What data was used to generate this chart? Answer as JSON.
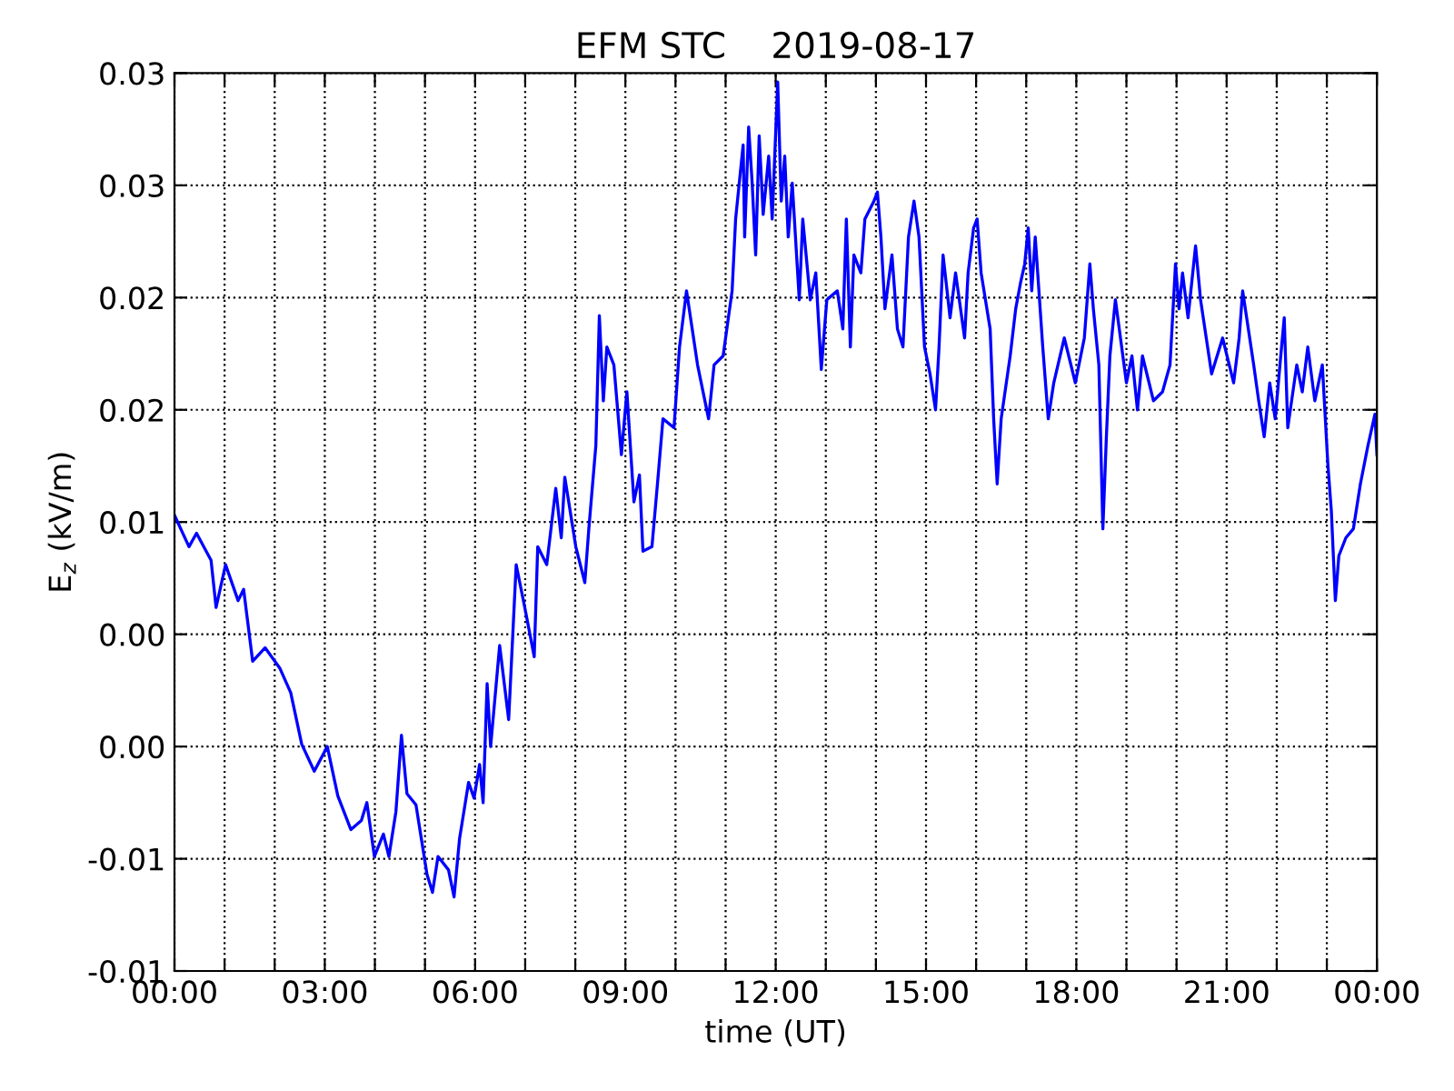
{
  "chart_data": {
    "type": "line",
    "title": "EFM STC    2019-08-17",
    "xlabel": "time (UT)",
    "ylabel": "E$_{z}$ (kV/m)",
    "xlim": [
      0,
      24
    ],
    "ylim": [
      -0.01,
      0.03
    ],
    "xticks": [
      {
        "value": 0,
        "label": "00:00"
      },
      {
        "value": 1,
        "label": null
      },
      {
        "value": 2,
        "label": null
      },
      {
        "value": 3,
        "label": "03:00"
      },
      {
        "value": 4,
        "label": null
      },
      {
        "value": 5,
        "label": null
      },
      {
        "value": 6,
        "label": "06:00"
      },
      {
        "value": 7,
        "label": null
      },
      {
        "value": 8,
        "label": null
      },
      {
        "value": 9,
        "label": "09:00"
      },
      {
        "value": 10,
        "label": null
      },
      {
        "value": 11,
        "label": null
      },
      {
        "value": 12,
        "label": "12:00"
      },
      {
        "value": 13,
        "label": null
      },
      {
        "value": 14,
        "label": null
      },
      {
        "value": 15,
        "label": "15:00"
      },
      {
        "value": 16,
        "label": null
      },
      {
        "value": 17,
        "label": null
      },
      {
        "value": 18,
        "label": "18:00"
      },
      {
        "value": 19,
        "label": null
      },
      {
        "value": 20,
        "label": null
      },
      {
        "value": 21,
        "label": "21:00"
      },
      {
        "value": 22,
        "label": null
      },
      {
        "value": 23,
        "label": null
      },
      {
        "value": 24,
        "label": "00:00"
      }
    ],
    "yticks": [
      {
        "value": -0.01,
        "label": "-0.01"
      },
      {
        "value": -0.005,
        "label": "-0.01"
      },
      {
        "value": 0,
        "label": "0.00"
      },
      {
        "value": 0.005,
        "label": "0.00"
      },
      {
        "value": 0.01,
        "label": "0.01"
      },
      {
        "value": 0.015,
        "label": "0.02"
      },
      {
        "value": 0.02,
        "label": "0.02"
      },
      {
        "value": 0.025,
        "label": "0.03"
      },
      {
        "value": 0.03,
        "label": "0.03"
      }
    ],
    "grid": true,
    "marker": "none",
    "line_style": "solid",
    "series": [
      {
        "color": "#0000ff",
        "x": [
          0.0,
          0.29,
          0.44,
          0.73,
          0.83,
          1.02,
          1.27,
          1.38,
          1.56,
          1.81,
          2.1,
          2.32,
          2.54,
          2.79,
          3.05,
          3.26,
          3.52,
          3.73,
          3.84,
          3.99,
          4.17,
          4.28,
          4.42,
          4.53,
          4.64,
          4.82,
          5.04,
          5.15,
          5.26,
          5.47,
          5.58,
          5.69,
          5.87,
          5.98,
          6.09,
          6.16,
          6.24,
          6.31,
          6.49,
          6.67,
          6.82,
          7.0,
          7.18,
          7.25,
          7.43,
          7.61,
          7.72,
          7.79,
          8.01,
          8.19,
          8.27,
          8.41,
          8.48,
          8.56,
          8.63,
          8.77,
          8.92,
          9.03,
          9.17,
          9.28,
          9.35,
          9.53,
          9.64,
          9.75,
          9.97,
          10.08,
          10.22,
          10.44,
          10.66,
          10.77,
          10.95,
          11.13,
          11.2,
          11.35,
          11.38,
          11.46,
          11.53,
          11.6,
          11.67,
          11.75,
          11.86,
          11.93,
          12.04,
          12.11,
          12.18,
          12.25,
          12.33,
          12.47,
          12.54,
          12.69,
          12.8,
          12.91,
          13.02,
          13.23,
          13.34,
          13.41,
          13.49,
          13.56,
          13.7,
          13.78,
          13.96,
          14.03,
          14.1,
          14.18,
          14.32,
          14.43,
          14.54,
          14.65,
          14.76,
          14.86,
          14.97,
          15.08,
          15.19,
          15.26,
          15.34,
          15.48,
          15.59,
          15.77,
          15.84,
          15.95,
          16.02,
          16.1,
          16.28,
          16.35,
          16.42,
          16.5,
          16.68,
          16.79,
          16.89,
          16.97,
          17.04,
          17.11,
          17.18,
          17.33,
          17.44,
          17.55,
          17.76,
          17.98,
          18.16,
          18.27,
          18.34,
          18.45,
          18.53,
          18.6,
          18.67,
          18.78,
          19.0,
          19.11,
          19.22,
          19.32,
          19.54,
          19.72,
          19.87,
          19.98,
          20.05,
          20.12,
          20.23,
          20.38,
          20.48,
          20.7,
          20.92,
          21.14,
          21.25,
          21.32,
          21.54,
          21.64,
          21.75,
          21.86,
          21.97,
          22.08,
          22.15,
          22.22,
          22.4,
          22.51,
          22.62,
          22.76,
          22.91,
          23.02,
          23.09,
          23.17,
          23.24,
          23.38,
          23.53,
          23.67,
          23.82,
          23.96,
          24.0
        ],
        "values": [
          0.0103,
          0.0089,
          0.0095,
          0.0083,
          0.0062,
          0.0081,
          0.0065,
          0.007,
          0.0038,
          0.0044,
          0.0035,
          0.0024,
          0.0001,
          -0.0011,
          0.0,
          -0.0022,
          -0.0037,
          -0.0033,
          -0.0025,
          -0.0049,
          -0.0039,
          -0.0049,
          -0.0029,
          0.0005,
          -0.0021,
          -0.0026,
          -0.0057,
          -0.0065,
          -0.0049,
          -0.0055,
          -0.0067,
          -0.0041,
          -0.0016,
          -0.0023,
          -0.0008,
          -0.0025,
          0.0028,
          0.0,
          0.0045,
          0.0012,
          0.0081,
          0.0061,
          0.004,
          0.0089,
          0.0081,
          0.0115,
          0.0093,
          0.012,
          0.0089,
          0.0073,
          0.0097,
          0.0134,
          0.0192,
          0.0154,
          0.0178,
          0.017,
          0.013,
          0.0158,
          0.0109,
          0.0121,
          0.0087,
          0.0089,
          0.0117,
          0.0146,
          0.0142,
          0.0178,
          0.0203,
          0.017,
          0.0146,
          0.017,
          0.0174,
          0.0203,
          0.0235,
          0.0268,
          0.0227,
          0.0276,
          0.0251,
          0.0219,
          0.0272,
          0.0237,
          0.0263,
          0.0235,
          0.0296,
          0.0243,
          0.0263,
          0.0227,
          0.0251,
          0.0199,
          0.0235,
          0.0199,
          0.0211,
          0.0168,
          0.0199,
          0.0203,
          0.0186,
          0.0235,
          0.0178,
          0.0219,
          0.0211,
          0.0235,
          0.0243,
          0.0247,
          0.0227,
          0.0195,
          0.0219,
          0.0186,
          0.0178,
          0.0227,
          0.0243,
          0.0227,
          0.0178,
          0.0166,
          0.015,
          0.0178,
          0.0219,
          0.0191,
          0.0211,
          0.0182,
          0.0211,
          0.0231,
          0.0235,
          0.0211,
          0.0186,
          0.0146,
          0.0117,
          0.0146,
          0.0174,
          0.0195,
          0.0207,
          0.0215,
          0.0231,
          0.0203,
          0.0227,
          0.0178,
          0.0146,
          0.0162,
          0.0182,
          0.0162,
          0.0182,
          0.0215,
          0.0195,
          0.017,
          0.0097,
          0.0138,
          0.0174,
          0.0199,
          0.0162,
          0.0174,
          0.015,
          0.0174,
          0.0154,
          0.0158,
          0.017,
          0.0215,
          0.0195,
          0.0211,
          0.0191,
          0.0223,
          0.0199,
          0.0166,
          0.0182,
          0.0162,
          0.0182,
          0.0203,
          0.017,
          0.0154,
          0.0138,
          0.0162,
          0.0146,
          0.0174,
          0.0191,
          0.0142,
          0.017,
          0.0158,
          0.0178,
          0.0154,
          0.017,
          0.0126,
          0.0105,
          0.0065,
          0.0085,
          0.0093,
          0.0097,
          0.0117,
          0.0134,
          0.0148,
          0.013
        ]
      }
    ]
  }
}
